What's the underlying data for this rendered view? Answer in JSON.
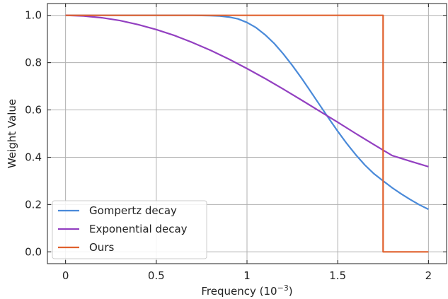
{
  "chart_data": {
    "type": "line",
    "title": "",
    "xlabel": "Frequency (10",
    "xlabel_exponent": "−3",
    "xlabel_close": ")",
    "ylabel": "Weight Value",
    "xlim": [
      -0.1,
      2.1
    ],
    "ylim": [
      -0.05,
      1.05
    ],
    "xticks": [
      0,
      0.5,
      1,
      1.5,
      2
    ],
    "xtick_labels": [
      "0",
      "0.5",
      "1",
      "1.5",
      "2"
    ],
    "yticks": [
      0.0,
      0.2,
      0.4,
      0.6,
      0.8,
      1.0
    ],
    "ytick_labels": [
      "0.0",
      "0.2",
      "0.4",
      "0.6",
      "0.8",
      "1.0"
    ],
    "grid": true,
    "legend_position": "bottom-left",
    "series": [
      {
        "name": "Gompertz decay",
        "color": "#4a8ad9",
        "x": [
          0,
          0.1,
          0.2,
          0.3,
          0.4,
          0.5,
          0.6,
          0.7,
          0.8,
          0.85,
          0.9,
          0.95,
          1.0,
          1.05,
          1.1,
          1.15,
          1.2,
          1.25,
          1.3,
          1.35,
          1.4,
          1.45,
          1.5,
          1.55,
          1.6,
          1.65,
          1.7,
          1.75,
          1.8,
          1.85,
          1.9,
          1.95,
          2.0
        ],
        "y": [
          1.0,
          1.0,
          1.0,
          1.0,
          1.0,
          1.0,
          1.0,
          1.0,
          0.999,
          0.997,
          0.993,
          0.985,
          0.97,
          0.948,
          0.918,
          0.881,
          0.837,
          0.788,
          0.735,
          0.679,
          0.622,
          0.565,
          0.51,
          0.458,
          0.41,
          0.367,
          0.33,
          0.3,
          0.271,
          0.245,
          0.221,
          0.199,
          0.18
        ]
      },
      {
        "name": "Exponential decay",
        "color": "#9340c1",
        "x": [
          0,
          0.1,
          0.2,
          0.3,
          0.4,
          0.5,
          0.6,
          0.7,
          0.8,
          0.9,
          1.0,
          1.1,
          1.2,
          1.3,
          1.4,
          1.5,
          1.6,
          1.7,
          1.8,
          1.9,
          2.0
        ],
        "y": [
          1.0,
          0.997,
          0.99,
          0.978,
          0.961,
          0.94,
          0.915,
          0.885,
          0.852,
          0.815,
          0.775,
          0.733,
          0.688,
          0.642,
          0.595,
          0.548,
          0.5,
          0.453,
          0.407,
          0.383,
          0.36
        ]
      },
      {
        "name": "Ours",
        "color": "#e0612e",
        "x": [
          0,
          1.75,
          1.75,
          2.0
        ],
        "y": [
          1.0,
          1.0,
          0.0,
          0.0
        ]
      }
    ]
  }
}
